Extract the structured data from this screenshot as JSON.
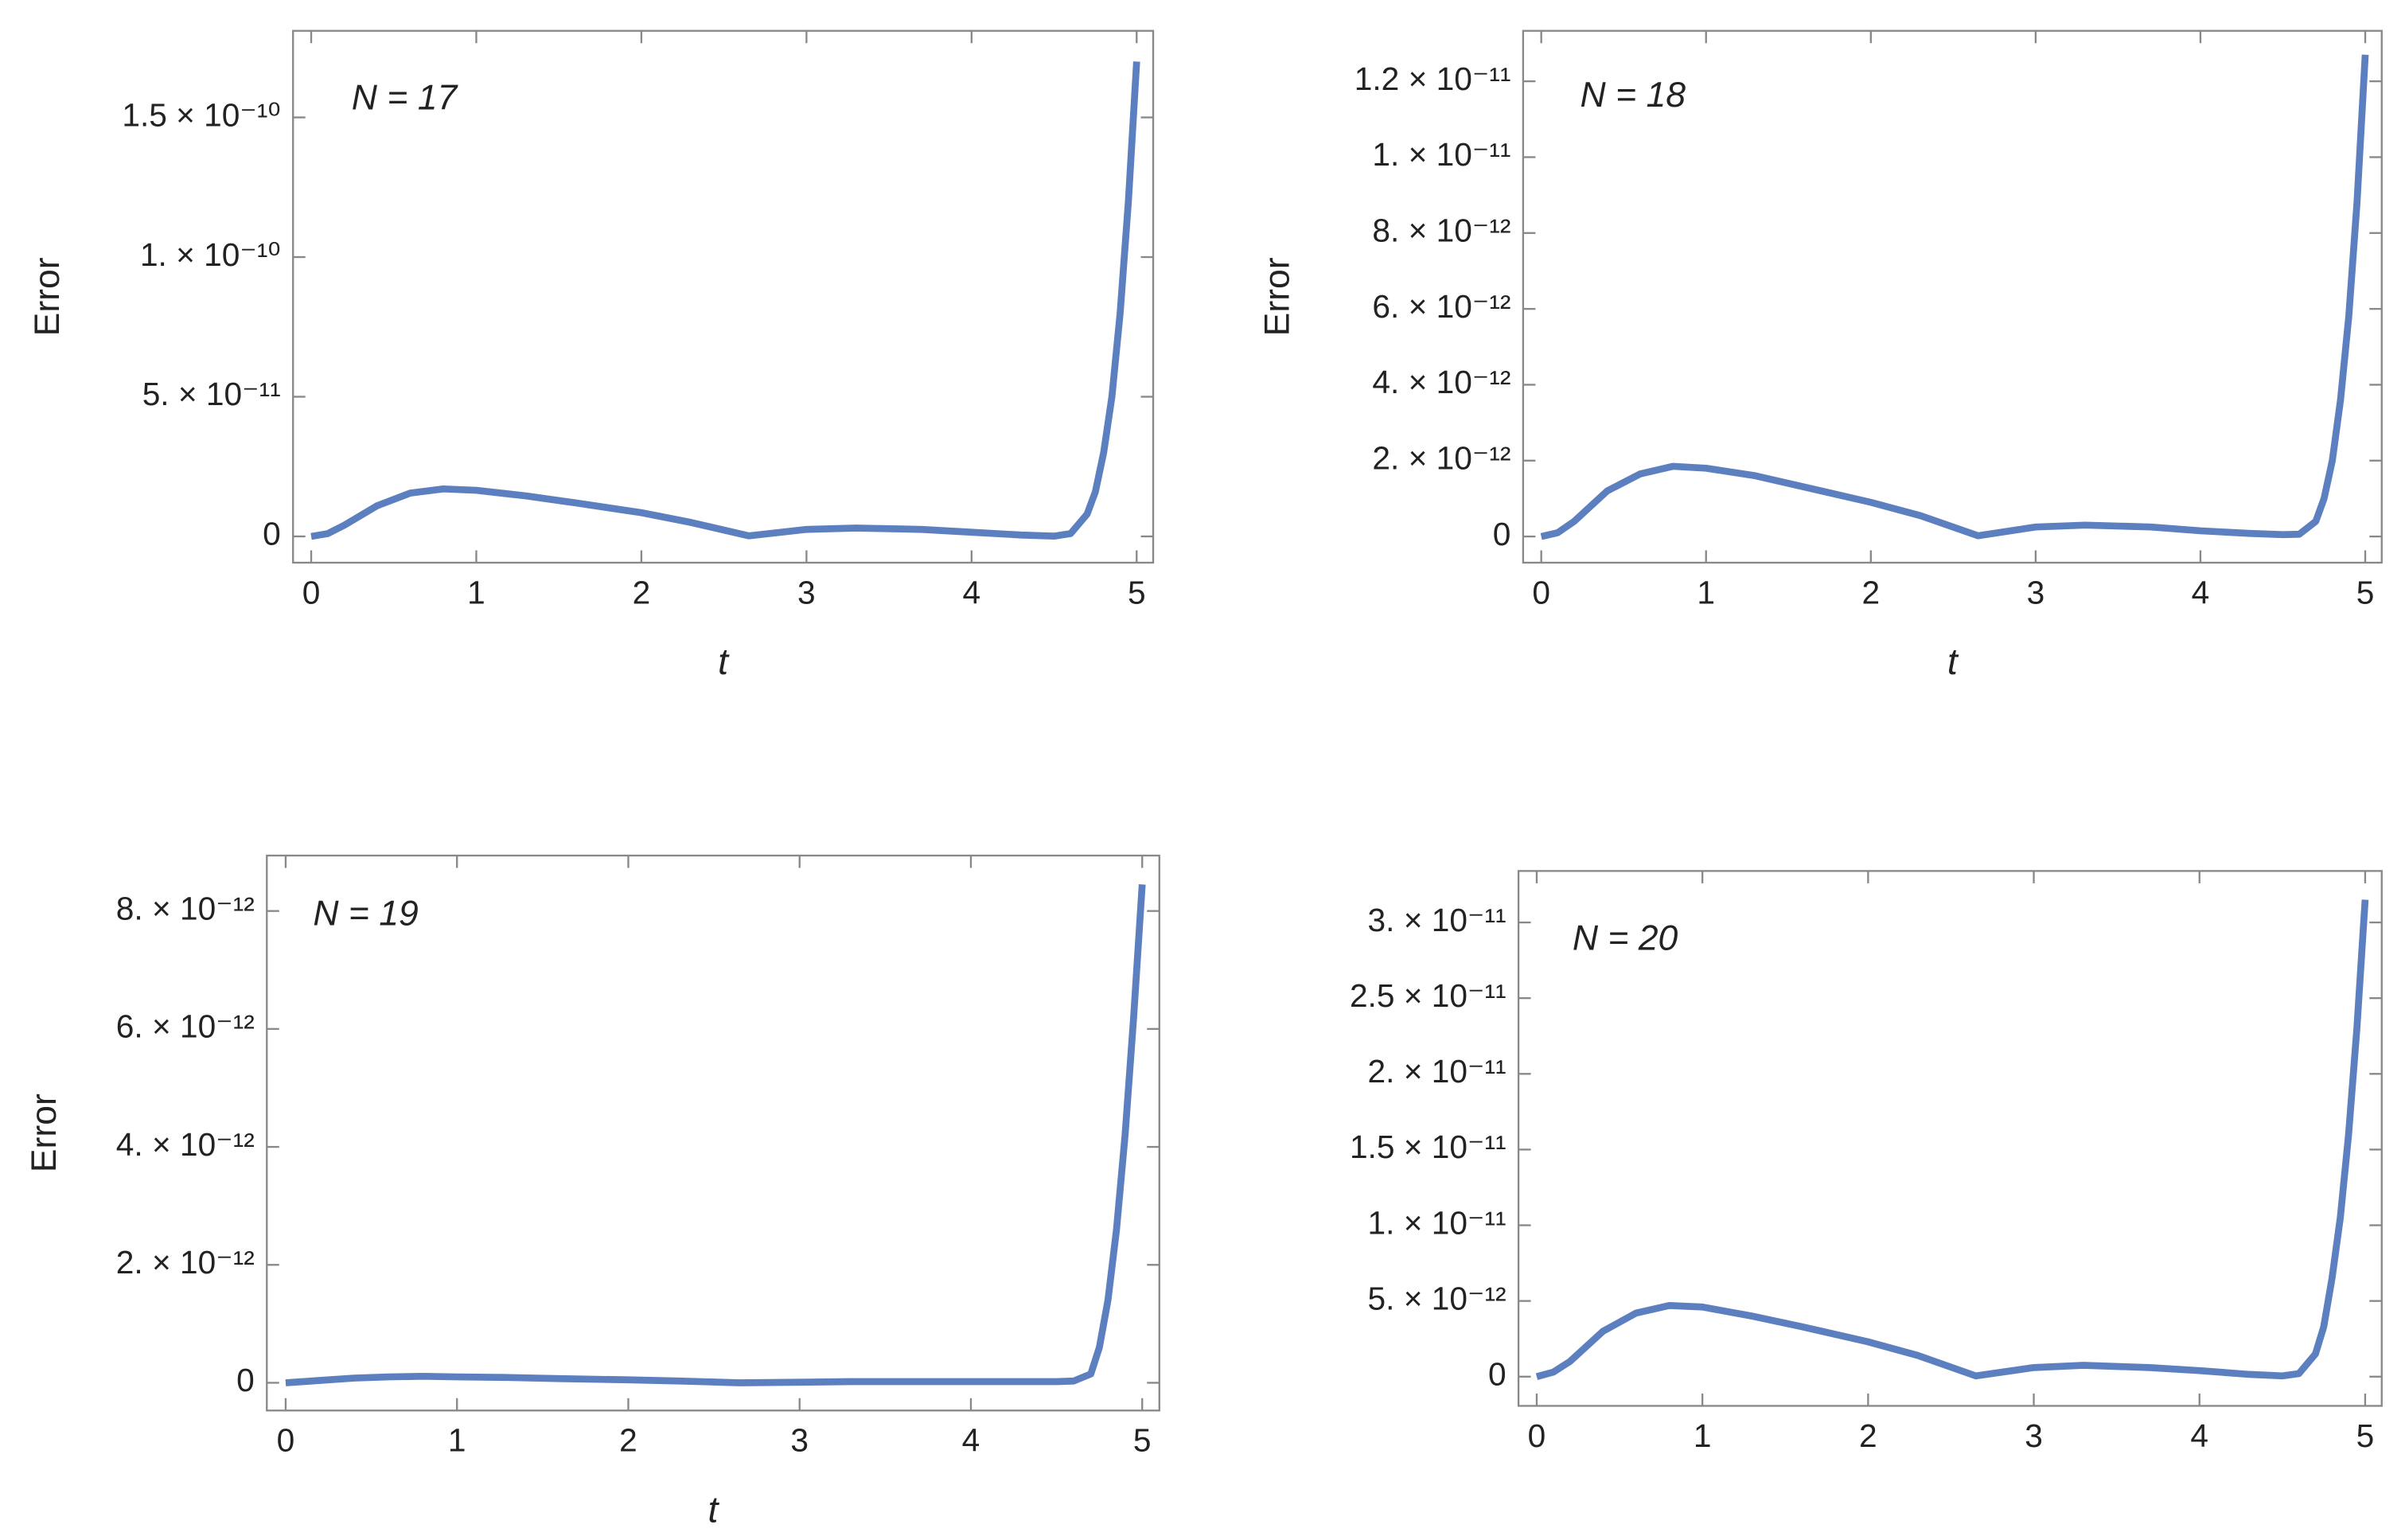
{
  "chart_data": [
    {
      "type": "line",
      "annotation": "N = 17",
      "xlabel": "t",
      "ylabel": "Error",
      "color": "#5b7fbf",
      "x": [
        0,
        0.1,
        0.2,
        0.4,
        0.6,
        0.8,
        1.0,
        1.3,
        1.6,
        2.0,
        2.3,
        2.65,
        3.0,
        3.3,
        3.7,
        4.0,
        4.3,
        4.5,
        4.6,
        4.7,
        4.75,
        4.8,
        4.85,
        4.9,
        4.95,
        5.0
      ],
      "values": [
        0,
        1e-12,
        4e-12,
        1.1e-11,
        1.55e-11,
        1.7e-11,
        1.65e-11,
        1.45e-11,
        1.2e-11,
        8.5e-12,
        5e-12,
        2e-13,
        2.5e-12,
        3e-12,
        2.5e-12,
        1.5e-12,
        5e-13,
        1e-13,
        1e-12,
        8e-12,
        1.6e-11,
        3e-11,
        5e-11,
        8e-11,
        1.2e-10,
        1.7e-10
      ],
      "xlim": [
        -0.11,
        5.1
      ],
      "xticks": [
        0,
        1,
        2,
        3,
        4,
        5
      ],
      "ylim": [
        -9.4e-12,
        1.81e-10
      ],
      "yticks": [
        0,
        {
          "value": 5e-11,
          "label": "5. × 10⁻¹¹"
        },
        {
          "value": 1e-10,
          "label": "1. × 10⁻¹⁰"
        },
        {
          "value": 1.5e-10,
          "label": "1.5 × 10⁻¹⁰"
        }
      ]
    },
    {
      "type": "line",
      "annotation": "N = 18",
      "xlabel": "t",
      "ylabel": "Error",
      "color": "#5b7fbf",
      "x": [
        0,
        0.1,
        0.2,
        0.4,
        0.6,
        0.8,
        1.0,
        1.3,
        1.6,
        2.0,
        2.3,
        2.65,
        3.0,
        3.3,
        3.7,
        4.0,
        4.3,
        4.5,
        4.6,
        4.7,
        4.75,
        4.8,
        4.85,
        4.9,
        4.95,
        5.0
      ],
      "values": [
        0,
        1e-13,
        4e-13,
        1.2e-12,
        1.65e-12,
        1.85e-12,
        1.8e-12,
        1.6e-12,
        1.3e-12,
        9e-13,
        5.5e-13,
        2e-14,
        2.5e-13,
        3e-13,
        2.5e-13,
        1.5e-13,
        8e-14,
        5e-14,
        6e-14,
        4e-13,
        1e-12,
        2e-12,
        3.6e-12,
        5.8e-12,
        8.8e-12,
        1.27e-11
      ],
      "xlim": [
        -0.11,
        5.1
      ],
      "xticks": [
        0,
        1,
        2,
        3,
        4,
        5
      ],
      "ylim": [
        -6.9e-13,
        1.333e-11
      ],
      "yticks": [
        0,
        {
          "value": 2e-12,
          "label": "2. × 10⁻¹²"
        },
        {
          "value": 4e-12,
          "label": "4. × 10⁻¹²"
        },
        {
          "value": 6e-12,
          "label": "6. × 10⁻¹²"
        },
        {
          "value": 8e-12,
          "label": "8. × 10⁻¹²"
        },
        {
          "value": 1e-11,
          "label": "1. × 10⁻¹¹"
        },
        {
          "value": 1.2e-11,
          "label": "1.2 × 10⁻¹¹"
        }
      ]
    },
    {
      "type": "line",
      "annotation": "N = 19",
      "xlabel": "t",
      "ylabel": "Error",
      "color": "#5b7fbf",
      "x": [
        0,
        0.1,
        0.2,
        0.4,
        0.6,
        0.8,
        1.0,
        1.3,
        1.6,
        2.0,
        2.3,
        2.65,
        3.0,
        3.3,
        3.7,
        4.0,
        4.3,
        4.5,
        4.6,
        4.7,
        4.75,
        4.8,
        4.85,
        4.9,
        4.95,
        5.0
      ],
      "values": [
        0,
        2e-14,
        4e-14,
        8e-14,
        1e-13,
        1.1e-13,
        1e-13,
        9e-14,
        7e-14,
        5e-14,
        3e-14,
        0,
        1e-14,
        2e-14,
        2e-14,
        2e-14,
        2e-14,
        2e-14,
        3e-14,
        1.5e-13,
        6e-13,
        1.4e-12,
        2.6e-12,
        4.2e-12,
        6.2e-12,
        8.45e-12
      ],
      "xlim": [
        -0.11,
        5.1
      ],
      "xticks": [
        0,
        1,
        2,
        3,
        4,
        5
      ],
      "ylim": [
        -4.7e-13,
        8.94e-12
      ],
      "yticks": [
        0,
        {
          "value": 2e-12,
          "label": "2. × 10⁻¹²"
        },
        {
          "value": 4e-12,
          "label": "4. × 10⁻¹²"
        },
        {
          "value": 6e-12,
          "label": "6. × 10⁻¹²"
        },
        {
          "value": 8e-12,
          "label": "8. × 10⁻¹²"
        }
      ]
    },
    {
      "type": "line",
      "annotation": "N = 20",
      "color": "#5b7fbf",
      "x": [
        0,
        0.1,
        0.2,
        0.4,
        0.6,
        0.8,
        1.0,
        1.3,
        1.6,
        2.0,
        2.3,
        2.65,
        3.0,
        3.3,
        3.7,
        4.0,
        4.3,
        4.5,
        4.6,
        4.7,
        4.75,
        4.8,
        4.85,
        4.9,
        4.95,
        5.0
      ],
      "values": [
        0,
        3e-13,
        1e-12,
        3e-12,
        4.2e-12,
        4.7e-12,
        4.6e-12,
        4e-12,
        3.3e-12,
        2.3e-12,
        1.4e-12,
        5e-14,
        6e-13,
        7.5e-13,
        6e-13,
        4e-13,
        1.5e-13,
        5e-14,
        2e-13,
        1.5e-12,
        3.3e-12,
        6.5e-12,
        1.05e-11,
        1.6e-11,
        2.3e-11,
        3.15e-11
      ],
      "xlim": [
        -0.11,
        5.1
      ],
      "xticks": [
        0,
        1,
        2,
        3,
        4,
        5
      ],
      "ylim": [
        -1.93e-12,
        3.34e-11
      ],
      "yticks": [
        0,
        {
          "value": 5e-12,
          "label": "5. × 10⁻¹²"
        },
        {
          "value": 1e-11,
          "label": "1. × 10⁻¹¹"
        },
        {
          "value": 1.5e-11,
          "label": "1.5 × 10⁻¹¹"
        },
        {
          "value": 2e-11,
          "label": "2. × 10⁻¹¹"
        },
        {
          "value": 2.5e-11,
          "label": "2.5 × 10⁻¹¹"
        },
        {
          "value": 3e-11,
          "label": "3. × 10⁻¹¹"
        }
      ]
    }
  ]
}
